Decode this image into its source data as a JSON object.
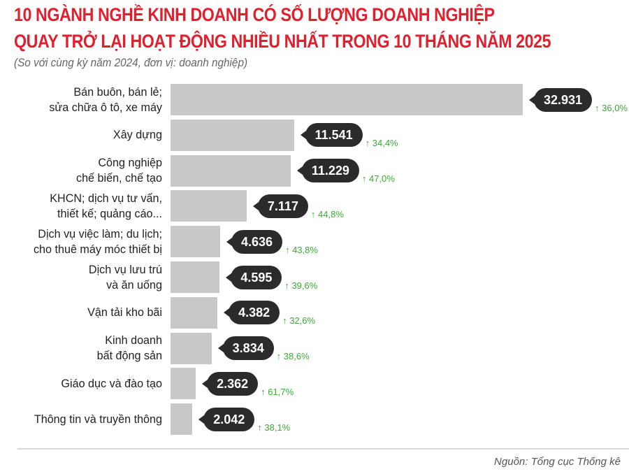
{
  "chart_data": {
    "type": "bar",
    "orientation": "horizontal",
    "title_lines": [
      "10 NGÀNH NGHỀ KINH DOANH CÓ SỐ LƯỢNG DOANH NGHIỆP",
      "QUAY TRỞ LẠI HOẠT ĐỘNG NHIỀU NHẤT TRONG 10 THÁNG NĂM 2025"
    ],
    "subtitle": "(So với cùng kỳ năm 2024, đơn vị: doanh nghiệp)",
    "categories": [
      "Bán buôn, bán lẻ;\nsửa chữa ô tô, xe máy",
      "Xây dựng",
      "Công nghiệp\nchế biến, chế tạo",
      "KHCN; dịch vụ tư vấn,\nthiết kế; quảng cáo...",
      "Dịch vụ việc làm; du lịch;\ncho thuê máy móc thiết bị",
      "Dịch vụ lưu trú\nvà ăn uống",
      "Vận tải kho bãi",
      "Kinh doanh\nbất động sản",
      "Giáo dục và đào tạo",
      "Thông tin và truyền thông"
    ],
    "values": [
      32931,
      11541,
      11229,
      7117,
      4636,
      4595,
      4382,
      3834,
      2362,
      2042
    ],
    "value_labels": [
      "32.931",
      "11.541",
      "11.229",
      "7.117",
      "4.636",
      "4.595",
      "4.382",
      "3.834",
      "2.362",
      "2.042"
    ],
    "change_labels": [
      "36,0%",
      "34,4%",
      "47,0%",
      "44,8%",
      "43,8%",
      "39,6%",
      "32,6%",
      "38,6%",
      "61,7%",
      "38,1%"
    ],
    "change_icon": "arrow-up-icon",
    "source": "Nguồn: Tổng cục Thống kê",
    "colors": {
      "title": "#e0202e",
      "bar": "#c9c8c9",
      "label_bg": "#2b2b2b",
      "change": "#3aaa35"
    },
    "xlim": [
      0,
      32931
    ],
    "grid": false
  }
}
